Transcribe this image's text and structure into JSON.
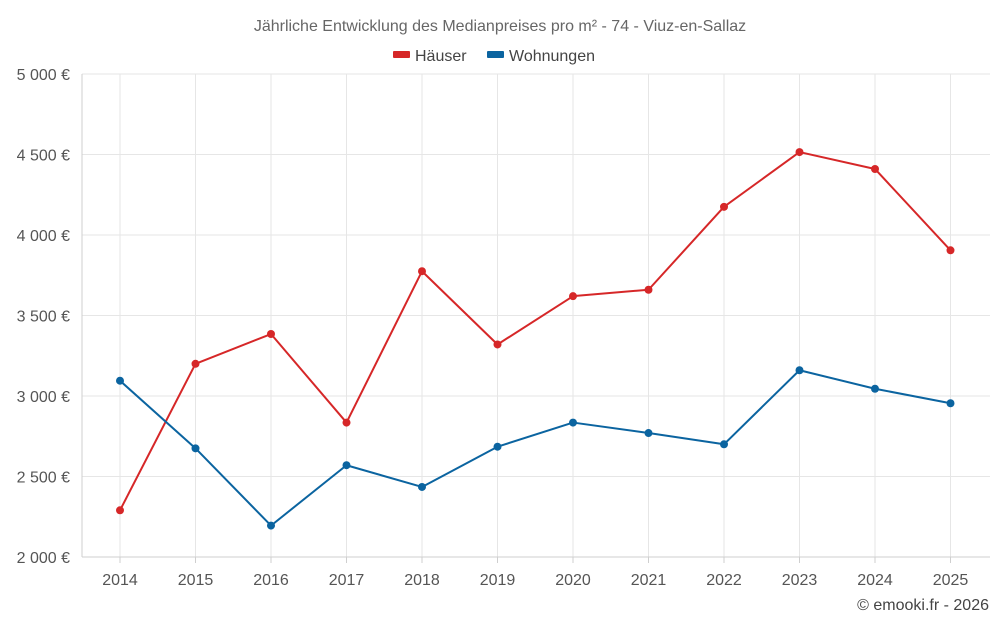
{
  "chart_data": {
    "type": "line",
    "title": "Jährliche Entwicklung des Medianpreises pro m² - 74 - Viuz-en-Sallaz",
    "categories": [
      "2014",
      "2015",
      "2016",
      "2017",
      "2018",
      "2019",
      "2020",
      "2021",
      "2022",
      "2023",
      "2024",
      "2025"
    ],
    "series": [
      {
        "name": "Häuser",
        "color": "#d62728",
        "values": [
          2290,
          3200,
          3385,
          2835,
          3775,
          3320,
          3620,
          3660,
          4175,
          4515,
          4410,
          3905
        ]
      },
      {
        "name": "Wohnungen",
        "color": "#0b64a0",
        "values": [
          3095,
          2675,
          2195,
          2570,
          2435,
          2685,
          2835,
          2770,
          2700,
          3160,
          3045,
          2955
        ]
      }
    ],
    "ylim": [
      2000,
      5000
    ],
    "yticks": [
      2000,
      2500,
      3000,
      3500,
      4000,
      4500,
      5000
    ],
    "ytick_labels": [
      "2 000 €",
      "2 500 €",
      "3 000 €",
      "3 500 €",
      "4 000 €",
      "4 500 €",
      "5 000 €"
    ],
    "legend_position": "top-center",
    "grid": true
  },
  "footer": {
    "copyright": "© emooki.fr - 2026"
  }
}
